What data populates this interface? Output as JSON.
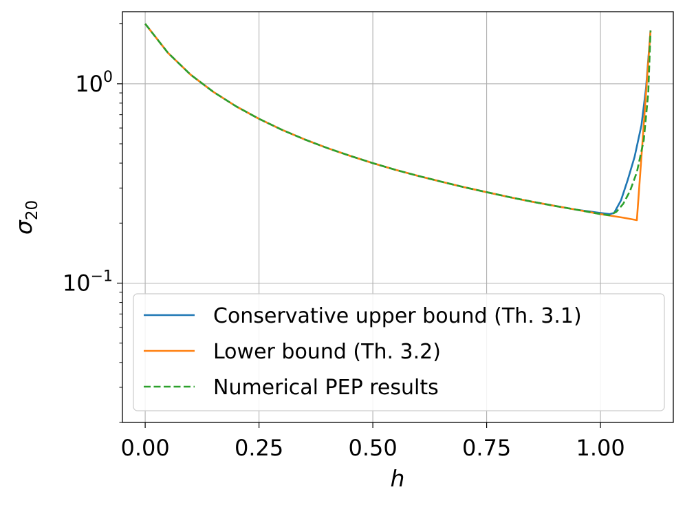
{
  "chart_data": {
    "type": "line",
    "title": "",
    "xlabel": "h",
    "ylabel": "σ",
    "ylabel_subscript": "20",
    "y_scale": "log",
    "xlim": [
      -0.05,
      1.16
    ],
    "ylim": [
      0.02,
      2.3
    ],
    "x_ticks": [
      0.0,
      0.25,
      0.5,
      0.75,
      1.0
    ],
    "x_tick_labels": [
      "0.00",
      "0.25",
      "0.50",
      "0.75",
      "1.00"
    ],
    "y_ticks": [
      {
        "value": 1.0,
        "base": "10",
        "exp": "0"
      },
      {
        "value": 0.1,
        "base": "10",
        "exp": "−1"
      }
    ],
    "grid": true,
    "legend_position": "lower-left",
    "series": [
      {
        "name": "Conservative upper bound (Th. 3.1)",
        "color": "#1f77b4",
        "style": "solid",
        "points": [
          [
            0.0,
            2.0
          ],
          [
            0.05,
            1.43
          ],
          [
            0.1,
            1.11
          ],
          [
            0.15,
            0.91
          ],
          [
            0.2,
            0.77
          ],
          [
            0.25,
            0.667
          ],
          [
            0.3,
            0.588
          ],
          [
            0.35,
            0.526
          ],
          [
            0.4,
            0.476
          ],
          [
            0.45,
            0.435
          ],
          [
            0.5,
            0.4
          ],
          [
            0.55,
            0.37
          ],
          [
            0.6,
            0.345
          ],
          [
            0.65,
            0.323
          ],
          [
            0.7,
            0.303
          ],
          [
            0.75,
            0.286
          ],
          [
            0.8,
            0.27
          ],
          [
            0.85,
            0.256
          ],
          [
            0.9,
            0.244
          ],
          [
            0.95,
            0.233
          ],
          [
            1.0,
            0.225
          ],
          [
            1.02,
            0.222
          ],
          [
            1.03,
            0.225
          ],
          [
            1.045,
            0.26
          ],
          [
            1.06,
            0.33
          ],
          [
            1.075,
            0.43
          ],
          [
            1.09,
            0.62
          ],
          [
            1.1,
            0.95
          ],
          [
            1.11,
            1.85
          ]
        ]
      },
      {
        "name": "Lower bound (Th. 3.2)",
        "color": "#ff7f0e",
        "style": "solid",
        "points": [
          [
            0.0,
            2.0
          ],
          [
            0.05,
            1.43
          ],
          [
            0.1,
            1.11
          ],
          [
            0.15,
            0.91
          ],
          [
            0.2,
            0.77
          ],
          [
            0.25,
            0.667
          ],
          [
            0.3,
            0.588
          ],
          [
            0.35,
            0.526
          ],
          [
            0.4,
            0.476
          ],
          [
            0.45,
            0.435
          ],
          [
            0.5,
            0.4
          ],
          [
            0.55,
            0.37
          ],
          [
            0.6,
            0.345
          ],
          [
            0.65,
            0.323
          ],
          [
            0.7,
            0.303
          ],
          [
            0.75,
            0.286
          ],
          [
            0.8,
            0.27
          ],
          [
            0.85,
            0.256
          ],
          [
            0.9,
            0.244
          ],
          [
            0.95,
            0.233
          ],
          [
            1.0,
            0.222
          ],
          [
            1.05,
            0.213
          ],
          [
            1.08,
            0.207
          ],
          [
            1.11,
            1.85
          ]
        ]
      },
      {
        "name": "Numerical PEP results",
        "color": "#2ca02c",
        "style": "dashed",
        "points": [
          [
            0.0,
            2.0
          ],
          [
            0.05,
            1.43
          ],
          [
            0.1,
            1.11
          ],
          [
            0.15,
            0.91
          ],
          [
            0.2,
            0.77
          ],
          [
            0.25,
            0.667
          ],
          [
            0.3,
            0.588
          ],
          [
            0.35,
            0.526
          ],
          [
            0.4,
            0.476
          ],
          [
            0.45,
            0.435
          ],
          [
            0.5,
            0.4
          ],
          [
            0.55,
            0.37
          ],
          [
            0.6,
            0.345
          ],
          [
            0.65,
            0.323
          ],
          [
            0.7,
            0.303
          ],
          [
            0.75,
            0.286
          ],
          [
            0.8,
            0.27
          ],
          [
            0.85,
            0.256
          ],
          [
            0.9,
            0.244
          ],
          [
            0.95,
            0.233
          ],
          [
            1.0,
            0.222
          ],
          [
            1.02,
            0.219
          ],
          [
            1.035,
            0.228
          ],
          [
            1.05,
            0.25
          ],
          [
            1.065,
            0.29
          ],
          [
            1.08,
            0.36
          ],
          [
            1.095,
            0.52
          ],
          [
            1.105,
            0.9
          ],
          [
            1.11,
            1.85
          ]
        ]
      }
    ]
  }
}
